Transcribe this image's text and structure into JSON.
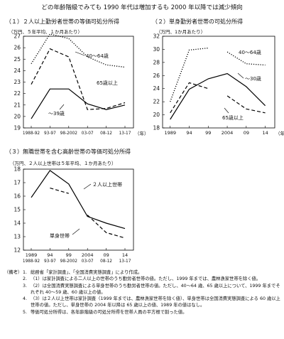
{
  "title": "どの年齢階級でみても 1990 年代は増加するも 2000 年以降では減少傾向",
  "chart_data": [
    {
      "id": "p1",
      "type": "line",
      "title": "（１）２人以上勤労者世帯の等価可処分所得",
      "unit": "（万円、５年平均、１か月あたり）",
      "categories": [
        "1988-92",
        "93-97",
        "98-2002",
        "03-07",
        "08-12",
        "13-17"
      ],
      "xunit": "（年）",
      "ylim": [
        19,
        27
      ],
      "yticks": [
        19,
        20,
        21,
        22,
        23,
        24,
        25,
        26,
        27
      ],
      "series": [
        {
          "name": "40～64歳",
          "style": "dotted",
          "values": [
            24.6,
            27.2,
            26.8,
            25.2,
            24.5,
            24.3
          ]
        },
        {
          "name": "65歳以上",
          "style": "dashed",
          "values": [
            22.8,
            25.9,
            25.2,
            20.6,
            20.7,
            21.2
          ]
        },
        {
          "name": "～39歳",
          "style": "solid",
          "values": [
            19.8,
            22.4,
            22.4,
            21.1,
            20.6,
            21.0
          ]
        }
      ]
    },
    {
      "id": "p2",
      "type": "line",
      "title": "（２）単身勤労者世帯の可処分所得",
      "unit": "（万円、1か月あたり）",
      "ticks": [
        "1989",
        "94",
        "99",
        "2004",
        "09",
        "14"
      ],
      "tick_years": [
        1989,
        1994,
        1999,
        2004,
        2009,
        2014
      ],
      "xlim": [
        1987,
        2016.5
      ],
      "xunit": "（年）",
      "ylim": [
        18,
        32
      ],
      "yticks": [
        18,
        20,
        22,
        24,
        26,
        28,
        30,
        32
      ],
      "series": [
        {
          "name": "40～64歳",
          "style": "dotted",
          "segments": [
            [
              [
                1989,
                22.0
              ],
              [
                1994,
                29.9
              ],
              [
                1999,
                30.2
              ]
            ],
            [
              [
                2004,
                29.6
              ],
              [
                2009,
                27.8
              ],
              [
                2014,
                27.6
              ]
            ]
          ]
        },
        {
          "name": "65歳以上",
          "style": "dashed",
          "segments": [
            [
              [
                1989,
                20.3
              ],
              [
                1994,
                24.9
              ],
              [
                1999,
                24.0
              ]
            ],
            [
              [
                2004,
                22.9
              ],
              [
                2009,
                20.9
              ],
              [
                2014,
                20.3
              ]
            ]
          ]
        },
        {
          "name": "～30歳",
          "style": "solid",
          "segments": [
            [
              [
                1989,
                19.3
              ],
              [
                1994,
                23.9
              ],
              [
                1999,
                25.5
              ],
              [
                2004,
                26.3
              ],
              [
                2009,
                24.3
              ],
              [
                2014,
                21.4
              ]
            ]
          ]
        }
      ]
    },
    {
      "id": "p3",
      "type": "line",
      "title": "（３）無職世帯を含む高齢世帯の等価可処分所得",
      "unit": "（万円、２人以上世帯は５年平均、１か月あたり）",
      "ticks_top": [
        "1989",
        "94",
        "99",
        "2004",
        "09",
        "14"
      ],
      "ticks_bottom": [
        "1988-92",
        "93-97",
        "98-2002",
        "03-07",
        "08-12",
        "13-17"
      ],
      "ylim": [
        12,
        18
      ],
      "yticks": [
        12,
        13,
        14,
        15,
        16,
        17,
        18
      ],
      "series": [
        {
          "name": "２人以上世帯",
          "style": "solid",
          "values": [
            15.9,
            17.9,
            16.9,
            14.5,
            14.0,
            13.6
          ]
        },
        {
          "name": "単身世帯",
          "style": "dashed",
          "segments": [
            [
              [
                1,
                16.6
              ],
              [
                2,
                16.2
              ]
            ],
            [
              [
                3,
                14.6
              ],
              [
                4,
                13.3
              ],
              [
                5,
                12.9
              ]
            ]
          ]
        }
      ]
    }
  ],
  "notes": {
    "label": "（備考）",
    "items": [
      {
        "num": "1.",
        "text": "総務省「家計調査」、「全国消費実態調査」により作成。"
      },
      {
        "num": "2.",
        "text": "（1）は家計調査による二人以上の世帯のうち勤労者世帯の値。ただし、1999 年までは、農林漁家世帯を除く値。"
      },
      {
        "num": "3.",
        "text": "（2）は全国消費実態調査による単身世帯のうち勤労者世帯の値。ただし、40～64 歳、65 歳以上について、1999 年までそれぞれ 40～59 歳、60 歳以上の値。"
      },
      {
        "num": "4.",
        "text": "（3）は２人以上世帯は家計調査（1999 年までは、農林漁家世帯を除く値）、単身世帯は全国消費実態調査による 60 歳以上世帯の値。ただし、単身世帯の 2004 年以降は 65 歳以上の値、1989 年の値はなし。"
      },
      {
        "num": "5.",
        "text": "等価可処分所得は、各年齢階級の可処分所得を世帯人員の平方根で割った値。"
      }
    ]
  }
}
